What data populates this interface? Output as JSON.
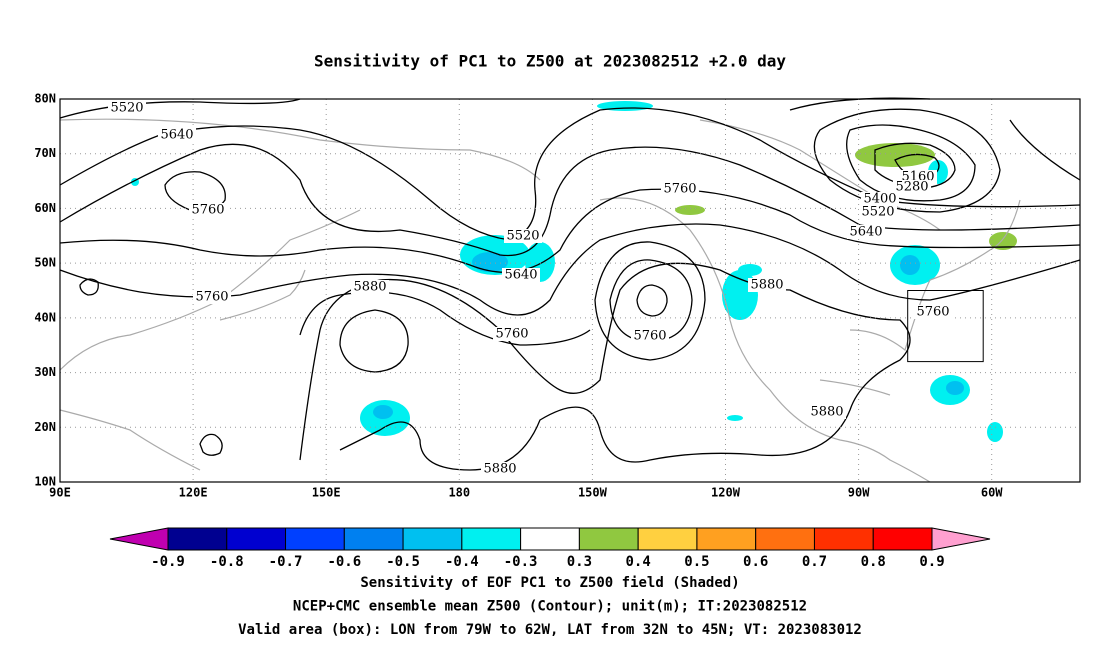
{
  "title": "Sensitivity of PC1 to Z500 at 2023082512 +2.0 day",
  "map": {
    "lat_labels": [
      "80N",
      "70N",
      "60N",
      "50N",
      "40N",
      "30N",
      "20N",
      "10N"
    ],
    "lon_labels": [
      "90E",
      "120E",
      "150E",
      "180",
      "150W",
      "120W",
      "90W",
      "60W"
    ],
    "contour_labels": [
      5520,
      5640,
      5760,
      5760,
      5880,
      5520,
      5640,
      5760,
      5760,
      5760,
      5880,
      5160,
      5280,
      5400,
      5520,
      5640,
      5760,
      5880,
      5880
    ]
  },
  "colorbar": {
    "levels": [
      -0.9,
      -0.8,
      -0.7,
      -0.6,
      -0.5,
      -0.4,
      -0.3,
      0.3,
      0.4,
      0.5,
      0.6,
      0.7,
      0.8,
      0.9
    ],
    "colors": [
      "#c000b0",
      "#000090",
      "#0000d0",
      "#0040ff",
      "#0080f0",
      "#00c0f0",
      "#00f0f0",
      "#ffffff",
      "#90c840",
      "#ffd040",
      "#ffa020",
      "#ff7010",
      "#ff3000",
      "#ff0000",
      "#ffa0d0"
    ]
  },
  "captions": [
    "Sensitivity of EOF PC1 to Z500 field (Shaded)",
    "NCEP+CMC ensemble mean Z500 (Contour); unit(m); IT:2023082512",
    "Valid area (box): LON from 79W to 62W, LAT from 32N to 45N; VT: 2023083012"
  ]
}
